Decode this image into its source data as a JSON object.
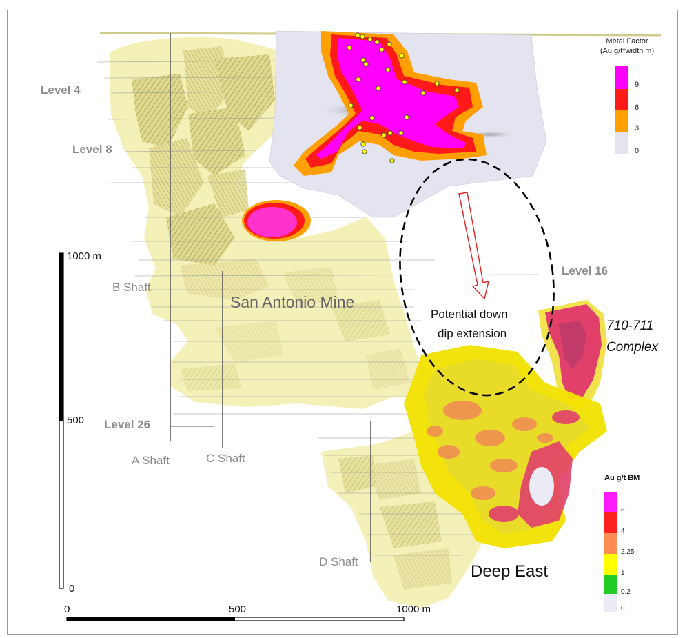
{
  "levels": {
    "level4": "Level  4",
    "level8": "Level  8",
    "level16": "Level 16",
    "level26": "Level  26"
  },
  "shafts": {
    "a": "A Shaft",
    "b": "B Shaft",
    "c": "C Shaft",
    "d": "D Shaft"
  },
  "areas": {
    "san_antonio": "San Antonio Mine",
    "deep_east": "Deep East",
    "complex_line1": "710-711",
    "complex_line2": "Complex",
    "extension_line1": "Potential down",
    "extension_line2": "dip extension"
  },
  "vertical_scale": {
    "top": "1000 m",
    "mid": "500",
    "bottom": "0"
  },
  "horizontal_scale": {
    "left": "0",
    "mid": "500",
    "right": "1000 m"
  },
  "metal_factor_legend": {
    "title_line1": "Metal Factor",
    "title_line2": "(Au g/t*width m)",
    "items": [
      {
        "label": "9",
        "color": "#ff00ff"
      },
      {
        "label": "6",
        "color": "#ff1a1a"
      },
      {
        "label": "3",
        "color": "#ffa000"
      },
      {
        "label": "0",
        "color": "#e4e4f0"
      }
    ]
  },
  "grade_legend": {
    "title": "Au g/t BM",
    "items": [
      {
        "label": "6",
        "color": "#ff19ff"
      },
      {
        "label": "4",
        "color": "#ff2020"
      },
      {
        "label": "2.25",
        "color": "#ff8c55"
      },
      {
        "label": "1",
        "color": "#ffff00"
      },
      {
        "label": "0.2",
        "color": "#22cc22"
      },
      {
        "label": "0",
        "color": "#ebebf6"
      }
    ]
  }
}
